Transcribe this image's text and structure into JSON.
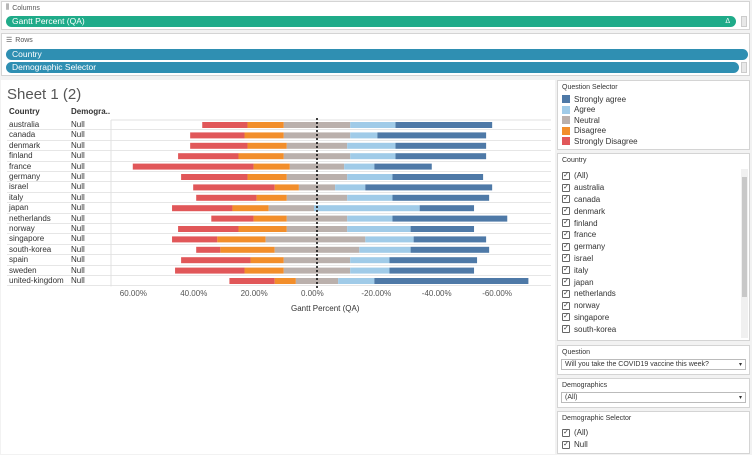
{
  "columns_shelf": {
    "label": "Columns",
    "pill": "Gantt Percent (QA)",
    "delta": "Δ"
  },
  "rows_shelf": {
    "label": "Rows",
    "pills": [
      "Country",
      "Demographic Selector"
    ]
  },
  "sheet": {
    "title": "Sheet 1 (2)",
    "col_headers": [
      "Country",
      "Demogra.."
    ],
    "axis_title": "Gantt Percent (QA)",
    "axis_ticks": [
      "60.00%",
      "40.00%",
      "20.00%",
      "0.00%",
      "-20.00%",
      "-40.00%",
      "-60.00%"
    ]
  },
  "chart_data": {
    "type": "bar",
    "subtype": "diverging-stacked-gantt",
    "xlabel": "Gantt Percent (QA)",
    "xlim": [
      0.7,
      -0.7
    ],
    "x_reversed": true,
    "segments_order": [
      "Strongly Disagree",
      "Disagree",
      "Neutral",
      "Agree",
      "Strongly agree"
    ],
    "colors": {
      "Strongly agree": "#4e79a7",
      "Agree": "#a0cbe8",
      "Neutral": "#bab0ac",
      "Disagree": "#f28e2b",
      "Strongly Disagree": "#e15759"
    },
    "rows": [
      {
        "country": "australia",
        "demo": "Null",
        "starts": [
          0.38,
          0.23,
          0.11,
          -0.11,
          -0.26
        ],
        "ends": [
          0.23,
          0.11,
          -0.11,
          -0.26,
          -0.58
        ]
      },
      {
        "country": "canada",
        "demo": "Null",
        "starts": [
          0.42,
          0.24,
          0.11,
          -0.11,
          -0.2
        ],
        "ends": [
          0.24,
          0.11,
          -0.11,
          -0.2,
          -0.56
        ]
      },
      {
        "country": "denmark",
        "demo": "Null",
        "starts": [
          0.42,
          0.23,
          0.1,
          -0.1,
          -0.26
        ],
        "ends": [
          0.23,
          0.1,
          -0.1,
          -0.26,
          -0.56
        ]
      },
      {
        "country": "finland",
        "demo": "Null",
        "starts": [
          0.46,
          0.26,
          0.11,
          -0.11,
          -0.26
        ],
        "ends": [
          0.26,
          0.11,
          -0.11,
          -0.26,
          -0.56
        ]
      },
      {
        "country": "france",
        "demo": "Null",
        "starts": [
          0.61,
          0.21,
          0.09,
          -0.09,
          -0.19
        ],
        "ends": [
          0.21,
          0.09,
          -0.09,
          -0.19,
          -0.38
        ]
      },
      {
        "country": "germany",
        "demo": "Null",
        "starts": [
          0.45,
          0.23,
          0.1,
          -0.1,
          -0.25
        ],
        "ends": [
          0.23,
          0.1,
          -0.1,
          -0.25,
          -0.55
        ]
      },
      {
        "country": "israel",
        "demo": "Null",
        "starts": [
          0.41,
          0.14,
          0.06,
          -0.06,
          -0.16
        ],
        "ends": [
          0.14,
          0.06,
          -0.06,
          -0.16,
          -0.58
        ]
      },
      {
        "country": "italy",
        "demo": "Null",
        "starts": [
          0.4,
          0.2,
          0.1,
          -0.1,
          -0.25
        ],
        "ends": [
          0.2,
          0.1,
          -0.1,
          -0.25,
          -0.57
        ]
      },
      {
        "country": "japan",
        "demo": "Null",
        "starts": [
          0.48,
          0.28,
          0.16,
          0.01,
          -0.34
        ],
        "ends": [
          0.28,
          0.16,
          0.01,
          -0.34,
          -0.52
        ]
      },
      {
        "country": "netherlands",
        "demo": "Null",
        "starts": [
          0.35,
          0.21,
          0.1,
          -0.1,
          -0.25
        ],
        "ends": [
          0.21,
          0.1,
          -0.1,
          -0.25,
          -0.63
        ]
      },
      {
        "country": "norway",
        "demo": "Null",
        "starts": [
          0.46,
          0.26,
          0.1,
          -0.1,
          -0.31
        ],
        "ends": [
          0.26,
          0.1,
          -0.1,
          -0.31,
          -0.52
        ]
      },
      {
        "country": "singapore",
        "demo": "Null",
        "starts": [
          0.48,
          0.33,
          0.17,
          -0.16,
          -0.32
        ],
        "ends": [
          0.33,
          0.17,
          -0.16,
          -0.32,
          -0.56
        ]
      },
      {
        "country": "south-korea",
        "demo": "Null",
        "starts": [
          0.4,
          0.32,
          0.14,
          -0.14,
          -0.31
        ],
        "ends": [
          0.32,
          0.14,
          -0.14,
          -0.31,
          -0.57
        ]
      },
      {
        "country": "spain",
        "demo": "Null",
        "starts": [
          0.45,
          0.22,
          0.11,
          -0.11,
          -0.24
        ],
        "ends": [
          0.22,
          0.11,
          -0.11,
          -0.24,
          -0.53
        ]
      },
      {
        "country": "sweden",
        "demo": "Null",
        "starts": [
          0.47,
          0.24,
          0.11,
          -0.11,
          -0.24
        ],
        "ends": [
          0.24,
          0.11,
          -0.11,
          -0.24,
          -0.52
        ]
      },
      {
        "country": "united-kingdom",
        "demo": "Null",
        "starts": [
          0.29,
          0.14,
          0.07,
          -0.07,
          -0.19
        ],
        "ends": [
          0.14,
          0.07,
          -0.07,
          -0.19,
          -0.7
        ]
      }
    ]
  },
  "question_selector": {
    "title": "Question Selector",
    "items": [
      {
        "label": "Strongly agree",
        "color": "#4e79a7"
      },
      {
        "label": "Agree",
        "color": "#a0cbe8"
      },
      {
        "label": "Neutral",
        "color": "#bab0ac"
      },
      {
        "label": "Disagree",
        "color": "#f28e2b"
      },
      {
        "label": "Strongly Disagree",
        "color": "#e15759"
      }
    ]
  },
  "country_filter": {
    "title": "Country",
    "items": [
      "(All)",
      "australia",
      "canada",
      "denmark",
      "finland",
      "france",
      "germany",
      "israel",
      "italy",
      "japan",
      "netherlands",
      "norway",
      "singapore",
      "south-korea"
    ],
    "check": "✓"
  },
  "question_filter": {
    "title": "Question",
    "value": "Will you take the COVID19 vaccine this week?",
    "arrow": "▾"
  },
  "demographics_filter": {
    "title": "Demographics",
    "value": "(All)",
    "arrow": "▾"
  },
  "demographic_selector": {
    "title": "Demographic Selector",
    "items": [
      "(All)",
      "Null"
    ],
    "check": "✓"
  }
}
